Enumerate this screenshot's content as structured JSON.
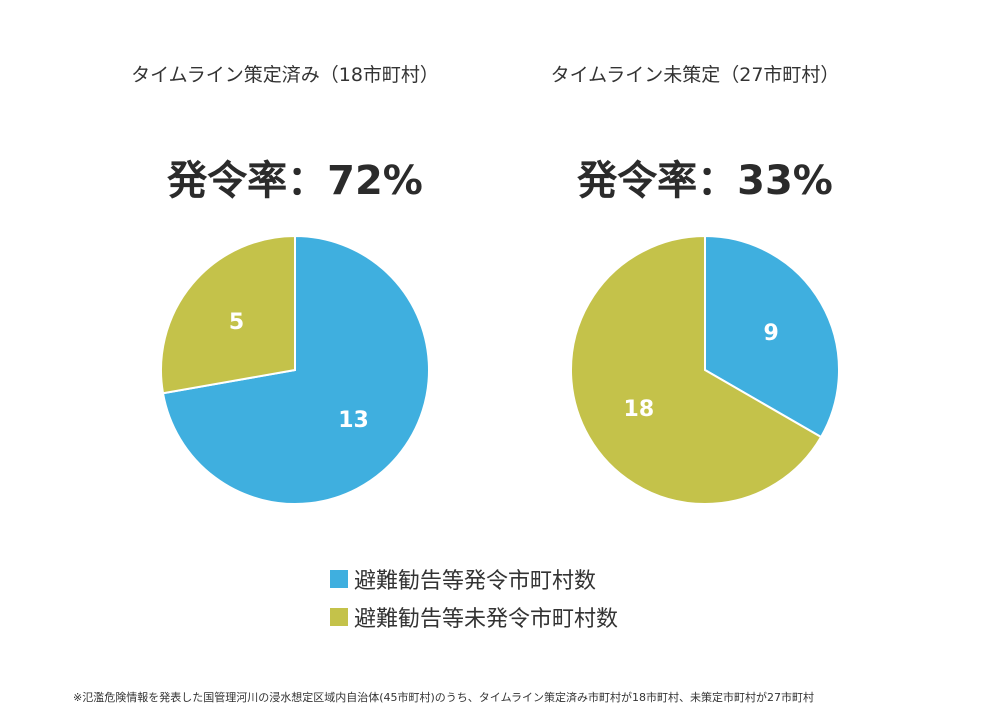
{
  "chart_data": [
    {
      "type": "pie",
      "title": "タイムライン策定済み（18市町村）",
      "subtitle": "発令率：72%",
      "series": [
        {
          "name": "避難勧告等発令市町村数",
          "value": 13,
          "color": "#3fafdf"
        },
        {
          "name": "避難勧告等未発令市町村数",
          "value": 5,
          "color": "#c4c24a"
        }
      ]
    },
    {
      "type": "pie",
      "title": "タイムライン未策定（27市町村）",
      "subtitle": "発令率：33%",
      "series": [
        {
          "name": "避難勧告等発令市町村数",
          "value": 9,
          "color": "#3fafdf"
        },
        {
          "name": "避難勧告等未発令市町村数",
          "value": 18,
          "color": "#c4c24a"
        }
      ]
    }
  ],
  "legend": [
    {
      "label": "避難勧告等発令市町村数",
      "color": "#3fafdf"
    },
    {
      "label": "避難勧告等未発令市町村数",
      "color": "#c4c24a"
    }
  ],
  "footnote": "※氾濫危険情報を発表した国管理河川の浸水想定区域内自治体(45市町村)のうち、タイムライン策定済み市町村が18市町村、未策定市町村が27市町村"
}
